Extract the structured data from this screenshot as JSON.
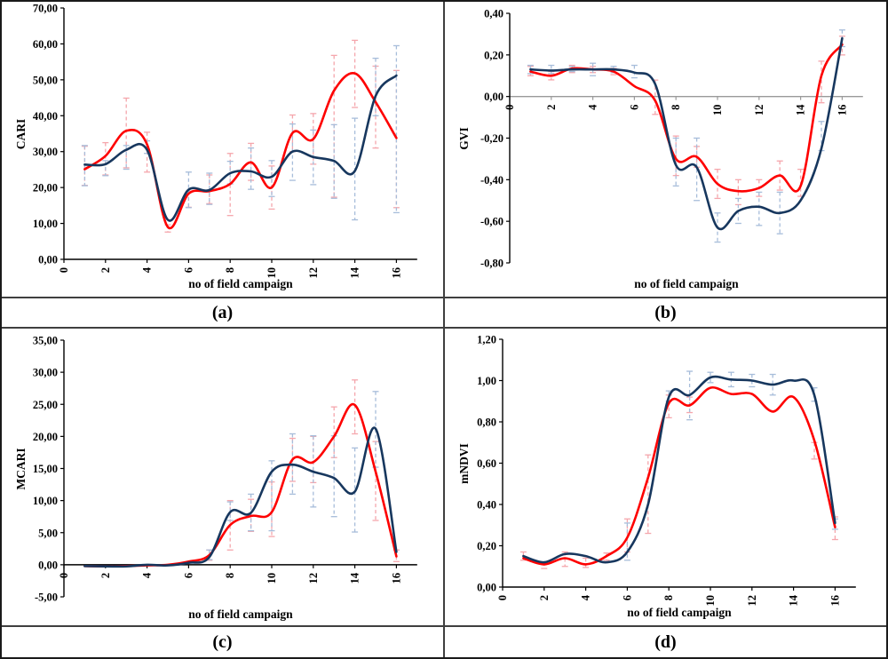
{
  "figure": {
    "background": "#ffffff",
    "border_color": "#1a1a1a",
    "divider_color": "#3f3f3f",
    "series_colors": {
      "red": "#fe0000",
      "navy": "#17375e"
    },
    "errorbar_colors": {
      "red": "#f5a6ac",
      "navy": "#a7bdda"
    }
  },
  "panels": [
    {
      "id": "a",
      "label": "(a)"
    },
    {
      "id": "b",
      "label": "(b)"
    },
    {
      "id": "c",
      "label": "(c)"
    },
    {
      "id": "d",
      "label": "(d)"
    }
  ],
  "chart_data": [
    {
      "type": "line",
      "panel": "a",
      "title": "(a)",
      "ylabel": "CARI",
      "xlabel": "no of field campaign",
      "xlim": [
        0,
        17
      ],
      "ylim": [
        0,
        70
      ],
      "grid": false,
      "legend": "none",
      "x": [
        1,
        2,
        3,
        4,
        5,
        6,
        7,
        8,
        9,
        10,
        11,
        12,
        13,
        14,
        15,
        16
      ],
      "x_tick_labels": [
        "0",
        "2",
        "4",
        "6",
        "8",
        "10",
        "12",
        "14",
        "16"
      ],
      "x_tick_values": [
        0,
        2,
        4,
        6,
        8,
        10,
        12,
        14,
        16
      ],
      "y_tick_labels": [
        "70,00",
        "60,00",
        "50,00",
        "40,00",
        "30,00",
        "20,00",
        "10,00",
        "0,00"
      ],
      "y_tick_values": [
        70,
        60,
        50,
        40,
        30,
        20,
        10,
        0
      ],
      "series": [
        {
          "name": "red",
          "values": [
            25.1,
            28.8,
            35.8,
            32.0,
            9.0,
            18.3,
            19.0,
            21.0,
            27.0,
            20.0,
            35.2,
            33.5,
            47.0,
            51.8,
            43.8,
            33.8
          ],
          "err_lo": [
            20.6,
            23.5,
            25.5,
            24.3,
            7.6,
            14.5,
            15.5,
            12.2,
            22.0,
            14.0,
            30.0,
            26.5,
            17.3,
            42.3,
            31.0,
            14.4
          ],
          "err_hi": [
            31.5,
            32.5,
            44.9,
            35.4,
            9.6,
            19.0,
            23.5,
            29.5,
            32.3,
            26.0,
            40.2,
            40.6,
            56.8,
            61.0,
            53.8,
            52.6
          ]
        },
        {
          "name": "navy",
          "values": [
            26.4,
            26.5,
            30.5,
            30.5,
            11.0,
            19.4,
            19.3,
            24.0,
            24.5,
            23.0,
            30.0,
            28.5,
            27.4,
            24.6,
            45.5,
            51.2
          ],
          "err_lo": [
            20.5,
            23.3,
            25.1,
            29.5,
            null,
            14.4,
            15.3,
            21.0,
            19.5,
            17.5,
            22.0,
            20.8,
            17.0,
            11.0,
            40.0,
            13.0
          ],
          "err_hi": [
            31.7,
            27.5,
            31.7,
            33.0,
            null,
            24.3,
            24.0,
            27.3,
            31.0,
            27.5,
            37.7,
            36.0,
            37.5,
            39.3,
            56.0,
            59.5
          ]
        }
      ]
    },
    {
      "type": "line",
      "panel": "b",
      "title": "(b)",
      "ylabel": "GVI",
      "xlabel": "no of field campaign",
      "xlim": [
        0,
        17
      ],
      "ylim": [
        -0.8,
        0.4
      ],
      "grid": false,
      "legend": "none",
      "x": [
        1,
        2,
        3,
        4,
        5,
        6,
        7,
        8,
        9,
        10,
        11,
        12,
        13,
        14,
        15,
        16
      ],
      "x_tick_labels": [
        "0",
        "2",
        "4",
        "6",
        "8",
        "10",
        "12",
        "14",
        "16"
      ],
      "x_tick_values": [
        0,
        2,
        4,
        6,
        8,
        10,
        12,
        14,
        16
      ],
      "y_tick_labels": [
        "0,40",
        "0,20",
        "0,00",
        "-0,20",
        "-0,40",
        "-0,60",
        "-0,80"
      ],
      "y_tick_values": [
        0.4,
        0.2,
        0,
        -0.2,
        -0.4,
        -0.6,
        -0.8
      ],
      "series": [
        {
          "name": "red",
          "values": [
            0.12,
            0.1,
            0.135,
            0.13,
            0.12,
            0.05,
            -0.02,
            -0.3,
            -0.29,
            -0.42,
            -0.455,
            -0.44,
            -0.38,
            -0.43,
            0.1,
            0.25
          ],
          "err_lo": [
            0.1,
            0.08,
            0.115,
            0.115,
            0.105,
            null,
            -0.086,
            -0.38,
            -0.34,
            -0.49,
            -0.52,
            -0.48,
            -0.45,
            -0.48,
            -0.03,
            0.2
          ],
          "err_hi": [
            0.145,
            0.12,
            0.15,
            0.145,
            0.135,
            null,
            0.079,
            -0.19,
            -0.24,
            -0.35,
            -0.4,
            -0.4,
            -0.31,
            -0.35,
            0.17,
            0.29
          ]
        },
        {
          "name": "navy",
          "values": [
            0.13,
            0.125,
            0.13,
            0.13,
            0.13,
            0.115,
            0.06,
            -0.33,
            -0.34,
            -0.63,
            -0.55,
            -0.53,
            -0.56,
            -0.5,
            -0.25,
            0.28
          ],
          "err_lo": [
            0.11,
            0.11,
            0.12,
            0.1,
            0.115,
            0.09,
            null,
            -0.43,
            -0.5,
            -0.7,
            -0.61,
            -0.62,
            -0.66,
            null,
            -0.26,
            0.24
          ],
          "err_hi": [
            0.15,
            0.15,
            0.145,
            0.16,
            0.145,
            0.15,
            null,
            -0.2,
            -0.2,
            -0.56,
            -0.49,
            -0.46,
            -0.46,
            null,
            -0.12,
            0.32
          ]
        }
      ]
    },
    {
      "type": "line",
      "panel": "c",
      "title": "(c)",
      "ylabel": "MCARI",
      "xlabel": "no of field campaign",
      "xlim": [
        0,
        17
      ],
      "ylim": [
        -5,
        35
      ],
      "grid": false,
      "legend": "none",
      "x": [
        1,
        2,
        3,
        4,
        5,
        6,
        7,
        8,
        9,
        10,
        11,
        12,
        13,
        14,
        15,
        16
      ],
      "x_tick_labels": [
        "0",
        "2",
        "4",
        "6",
        "8",
        "10",
        "12",
        "14",
        "16"
      ],
      "x_tick_values": [
        0,
        2,
        4,
        6,
        8,
        10,
        12,
        14,
        16
      ],
      "y_tick_labels": [
        "35,00",
        "30,00",
        "25,00",
        "20,00",
        "15,00",
        "10,00",
        "5,00",
        "0,00",
        "-5,00"
      ],
      "y_tick_values": [
        35,
        30,
        25,
        20,
        15,
        10,
        5,
        0,
        -5
      ],
      "series": [
        {
          "name": "red",
          "values": [
            -0.2,
            -0.25,
            -0.2,
            -0.1,
            0.0,
            0.5,
            1.5,
            6.2,
            7.6,
            8.2,
            16.4,
            16.0,
            20.0,
            24.9,
            14.5,
            1.3
          ],
          "err_lo": [
            null,
            null,
            null,
            null,
            null,
            null,
            0.7,
            2.3,
            5.2,
            4.4,
            13.0,
            12.8,
            16.7,
            20.4,
            6.9,
            0.5
          ],
          "err_hi": [
            null,
            null,
            null,
            null,
            null,
            null,
            2.3,
            10.0,
            10.2,
            12.9,
            19.7,
            20.0,
            24.6,
            28.8,
            19.2,
            2.3
          ]
        },
        {
          "name": "navy",
          "values": [
            -0.2,
            -0.25,
            -0.25,
            0.0,
            -0.1,
            0.3,
            1.2,
            8.2,
            8.1,
            14.5,
            15.6,
            14.5,
            13.5,
            11.4,
            21.2,
            2.0
          ],
          "err_lo": [
            null,
            null,
            null,
            null,
            null,
            null,
            0.8,
            6.9,
            5.3,
            5.3,
            11.0,
            9.0,
            7.5,
            5.1,
            15.2,
            null
          ],
          "err_hi": [
            null,
            null,
            null,
            null,
            null,
            null,
            2.3,
            9.8,
            11.0,
            16.2,
            20.4,
            20.1,
            20.1,
            18.2,
            27.0,
            null
          ]
        }
      ]
    },
    {
      "type": "line",
      "panel": "d",
      "title": "(d)",
      "ylabel": "mNDVI",
      "xlabel": "no of field campaign",
      "xlim": [
        0,
        17
      ],
      "ylim": [
        0,
        1.2
      ],
      "grid": false,
      "legend": "none",
      "x": [
        1,
        2,
        3,
        4,
        5,
        6,
        7,
        8,
        9,
        10,
        11,
        12,
        13,
        14,
        15,
        16
      ],
      "x_tick_labels": [
        "0",
        "2",
        "4",
        "6",
        "8",
        "10",
        "12",
        "14",
        "16"
      ],
      "x_tick_values": [
        0,
        2,
        4,
        6,
        8,
        10,
        12,
        14,
        16
      ],
      "y_tick_labels": [
        "1,20",
        "1,00",
        "0,80",
        "0,60",
        "0,40",
        "0,20",
        "0,00"
      ],
      "y_tick_values": [
        1.2,
        1.0,
        0.8,
        0.6,
        0.4,
        0.2,
        0
      ],
      "series": [
        {
          "name": "red",
          "values": [
            0.14,
            0.11,
            0.14,
            0.11,
            0.15,
            0.24,
            0.53,
            0.89,
            0.88,
            0.965,
            0.935,
            0.935,
            0.85,
            0.92,
            0.71,
            0.29
          ],
          "err_lo": [
            0.13,
            0.09,
            0.1,
            0.095,
            0.13,
            0.17,
            0.26,
            0.82,
            0.845,
            null,
            null,
            null,
            null,
            null,
            0.62,
            0.23
          ],
          "err_hi": [
            0.17,
            0.12,
            0.17,
            0.14,
            0.165,
            0.33,
            0.64,
            0.93,
            0.92,
            null,
            null,
            null,
            null,
            null,
            0.7,
            0.34
          ]
        },
        {
          "name": "navy",
          "values": [
            0.15,
            0.12,
            0.16,
            0.15,
            0.12,
            0.17,
            0.4,
            0.92,
            0.93,
            1.015,
            1.005,
            1.0,
            0.98,
            1.0,
            0.93,
            0.31
          ],
          "err_lo": [
            null,
            null,
            null,
            null,
            null,
            0.13,
            null,
            0.9,
            0.81,
            0.99,
            0.97,
            0.97,
            0.93,
            null,
            0.9,
            0.28
          ],
          "err_hi": [
            null,
            null,
            null,
            null,
            null,
            0.31,
            null,
            0.95,
            1.045,
            1.04,
            1.04,
            1.03,
            1.03,
            null,
            0.965,
            0.33
          ]
        }
      ]
    }
  ]
}
